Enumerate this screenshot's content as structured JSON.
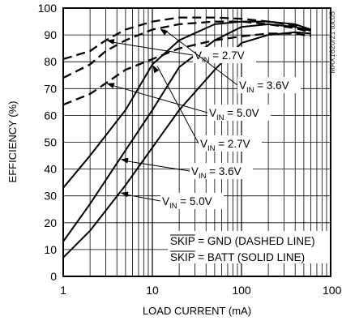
{
  "chart_data": {
    "type": "line",
    "title": "",
    "xlabel": "LOAD CURRENT (mA)",
    "ylabel": "EFFICIENCY (%)",
    "x_scale": "log",
    "xlim": [
      1,
      1000
    ],
    "ylim": [
      0,
      100
    ],
    "grid": true,
    "x_ticks": [
      "1",
      "10",
      "100",
      "1000"
    ],
    "y_ticks": [
      "0",
      "10",
      "20",
      "30",
      "40",
      "50",
      "60",
      "70",
      "80",
      "90",
      "100"
    ],
    "annotation_notes": [
      {
        "text": "SKIP = GND (DASHED LINE)",
        "overline": "SKIP"
      },
      {
        "text": "SKIP = BATT (SOLID LINE)",
        "overline": "SKIP"
      }
    ],
    "side_label": "MAX1820/21 toc05",
    "series": [
      {
        "label": "V_IN = 2.7V",
        "sub": "IN",
        "style": "dashed",
        "x": [
          1,
          2,
          3,
          5,
          10,
          20,
          50,
          100,
          200,
          400,
          600
        ],
        "y": [
          81,
          84,
          88,
          92,
          95,
          96.5,
          96.5,
          96,
          95,
          93.5,
          92
        ]
      },
      {
        "label": "V_IN = 3.6V",
        "sub": "IN",
        "style": "dashed",
        "x": [
          1,
          2,
          3,
          5,
          10,
          20,
          50,
          100,
          200,
          400,
          600
        ],
        "y": [
          74,
          79,
          84,
          88,
          92,
          94,
          95,
          95,
          94,
          92.5,
          91
        ]
      },
      {
        "label": "V_IN = 5.0V",
        "sub": "IN",
        "style": "dashed",
        "x": [
          1,
          2,
          3,
          5,
          10,
          20,
          50,
          100,
          200,
          400,
          600
        ],
        "y": [
          64,
          68,
          72,
          77,
          81,
          85,
          88,
          89.5,
          90.5,
          90.5,
          89.5
        ]
      },
      {
        "label": "V_IN = 2.7V",
        "sub": "IN",
        "style": "solid",
        "x": [
          1,
          2,
          5,
          10,
          20,
          50,
          100,
          200,
          400,
          600
        ],
        "y": [
          33,
          45,
          62,
          79,
          88,
          94,
          95,
          95,
          94,
          92
        ]
      },
      {
        "label": "V_IN = 3.6V",
        "sub": "IN",
        "style": "solid",
        "x": [
          1,
          2,
          5,
          10,
          20,
          50,
          100,
          200,
          400,
          600
        ],
        "y": [
          13,
          27,
          47,
          62,
          78,
          88,
          93,
          94,
          93,
          91.5
        ]
      },
      {
        "label": "V_IN = 5.0V",
        "sub": "IN",
        "style": "solid",
        "x": [
          1,
          2,
          5,
          10,
          20,
          50,
          100,
          200,
          400,
          600
        ],
        "y": [
          7,
          17,
          34,
          48,
          62,
          77,
          87,
          90,
          91,
          90.5
        ]
      }
    ],
    "callouts": [
      {
        "series": 0,
        "text_x": 240,
        "text_y": 73
      },
      {
        "series": 1,
        "text_x": 295,
        "text_y": 110
      },
      {
        "series": 2,
        "text_x": 258,
        "text_y": 144
      },
      {
        "series": 3,
        "text_x": 247,
        "text_y": 182
      },
      {
        "series": 4,
        "text_x": 236,
        "text_y": 216
      },
      {
        "series": 5,
        "text_x": 200,
        "text_y": 253
      }
    ]
  }
}
